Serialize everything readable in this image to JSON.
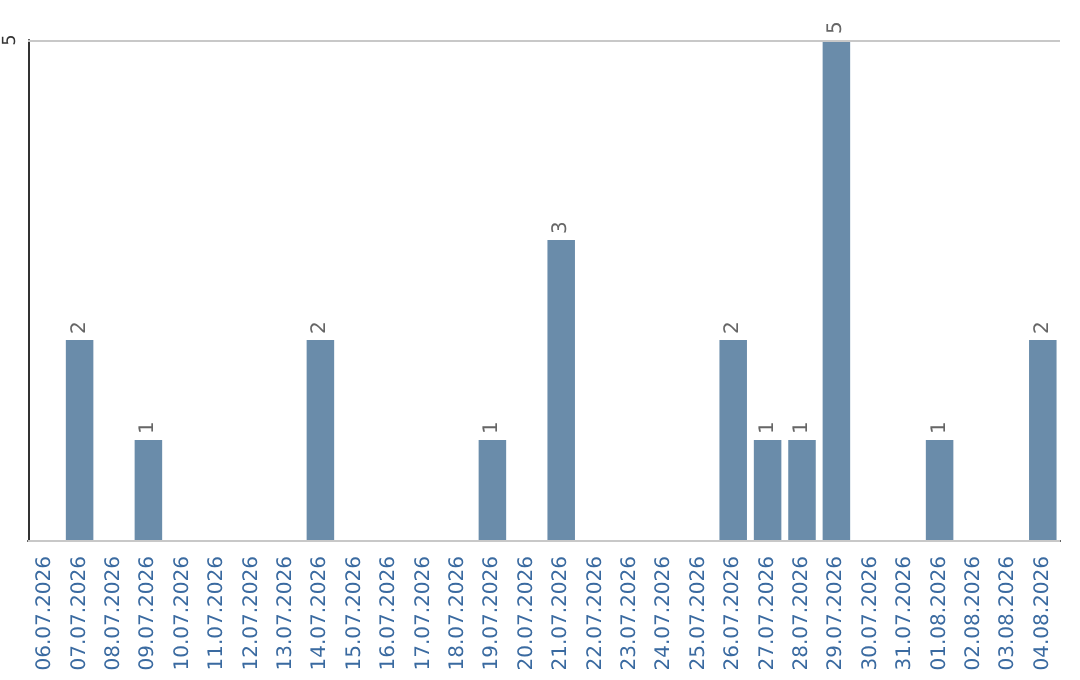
{
  "chart_data": {
    "type": "bar",
    "categories": [
      "06.07.2026",
      "07.07.2026",
      "08.07.2026",
      "09.07.2026",
      "10.07.2026",
      "11.07.2026",
      "12.07.2026",
      "13.07.2026",
      "14.07.2026",
      "15.07.2026",
      "16.07.2026",
      "17.07.2026",
      "18.07.2026",
      "19.07.2026",
      "20.07.2026",
      "21.07.2026",
      "22.07.2026",
      "23.07.2026",
      "24.07.2026",
      "25.07.2026",
      "26.07.2026",
      "27.07.2026",
      "28.07.2026",
      "29.07.2026",
      "30.07.2026",
      "31.07.2026",
      "01.08.2026",
      "02.08.2026",
      "03.08.2026",
      "04.08.2026"
    ],
    "values": [
      0,
      2,
      0,
      1,
      0,
      0,
      0,
      0,
      2,
      0,
      0,
      0,
      0,
      1,
      0,
      3,
      0,
      0,
      0,
      0,
      2,
      1,
      1,
      5,
      0,
      0,
      1,
      0,
      0,
      2
    ],
    "value_labels": [
      null,
      "2",
      null,
      "1",
      null,
      null,
      null,
      null,
      "2",
      null,
      null,
      null,
      null,
      "1",
      null,
      "3",
      null,
      null,
      null,
      null,
      "2",
      "1",
      "1",
      "5",
      null,
      null,
      "1",
      null,
      null,
      "2"
    ],
    "color": "#6a8caa",
    "ylim": [
      0,
      5
    ],
    "yticks": [
      {
        "value": 0,
        "label": null
      },
      5
    ],
    "grid": "y"
  }
}
